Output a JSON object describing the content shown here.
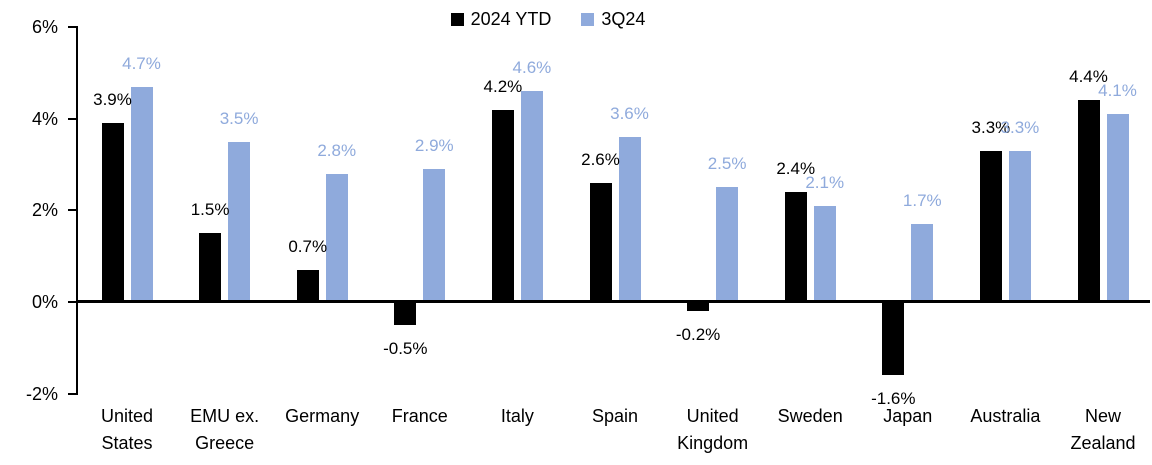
{
  "chart_data": {
    "type": "bar",
    "title": "",
    "xlabel": "",
    "ylabel": "",
    "grid": false,
    "legend_position": "top-center",
    "ylim": [
      -2,
      6
    ],
    "yticks": [
      {
        "value": 6,
        "label": "6%"
      },
      {
        "value": 4,
        "label": "4%"
      },
      {
        "value": 2,
        "label": "2%"
      },
      {
        "value": 0,
        "label": "0%"
      },
      {
        "value": -2,
        "label": "-2%"
      }
    ],
    "categories": [
      "United States",
      "EMU ex. Greece",
      "Germany",
      "France",
      "Italy",
      "Spain",
      "United Kingdom",
      "Sweden",
      "Japan",
      "Australia",
      "New Zealand"
    ],
    "category_lines": [
      [
        "United",
        "States"
      ],
      [
        "EMU ex.",
        "Greece"
      ],
      [
        "Germany"
      ],
      [
        "France"
      ],
      [
        "Italy"
      ],
      [
        "Spain"
      ],
      [
        "United",
        "Kingdom"
      ],
      [
        "Sweden"
      ],
      [
        "Japan"
      ],
      [
        "Australia"
      ],
      [
        "New",
        "Zealand"
      ]
    ],
    "series": [
      {
        "name": "2024 YTD",
        "color": "#000000",
        "values": [
          3.9,
          1.5,
          0.7,
          -0.5,
          4.2,
          2.6,
          -0.2,
          2.4,
          -1.6,
          3.3,
          4.4
        ],
        "labels": [
          "3.9%",
          "1.5%",
          "0.7%",
          "-0.5%",
          "4.2%",
          "2.6%",
          "-0.2%",
          "2.4%",
          "-1.6%",
          "3.3%",
          "4.4%"
        ]
      },
      {
        "name": "3Q24",
        "color": "#8FAADC",
        "values": [
          4.7,
          3.5,
          2.8,
          2.9,
          4.6,
          3.6,
          2.5,
          2.1,
          1.7,
          3.3,
          4.1
        ],
        "labels": [
          "4.7%",
          "3.5%",
          "2.8%",
          "2.9%",
          "4.6%",
          "3.6%",
          "2.5%",
          "2.1%",
          "1.7%",
          "3.3%",
          "4.1%"
        ]
      }
    ]
  }
}
